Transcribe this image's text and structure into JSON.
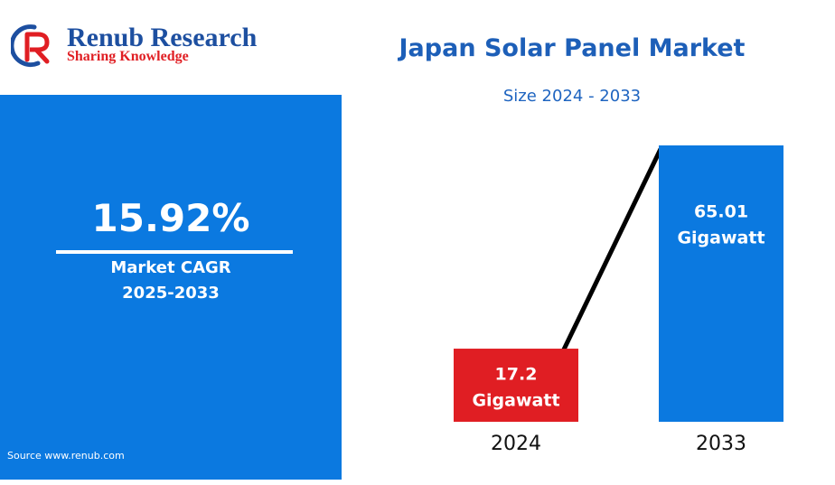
{
  "logo": {
    "name": "Renub Research",
    "tagline": "Sharing Knowledge"
  },
  "cagr": {
    "value": "15.92%",
    "label": "Market CAGR",
    "period": "2025-2033"
  },
  "source": "Source  www.renub.com",
  "chart_data": {
    "type": "bar",
    "title": "Japan Solar Panel Market",
    "subtitle": "Size 2024 - 2033",
    "categories": [
      "2024",
      "2033"
    ],
    "values": [
      17.2,
      65.01
    ],
    "value_labels": [
      "17.2",
      "65.01"
    ],
    "unit": "Gigawatt",
    "colors": [
      "#e01e23",
      "#0b79e0"
    ],
    "trend_line": true,
    "trend_color": "#000000"
  },
  "colors": {
    "panel": "#0b79e0",
    "title": "#1d5fb8",
    "logo_blue": "#1d4fa0",
    "logo_red": "#e01e23"
  }
}
